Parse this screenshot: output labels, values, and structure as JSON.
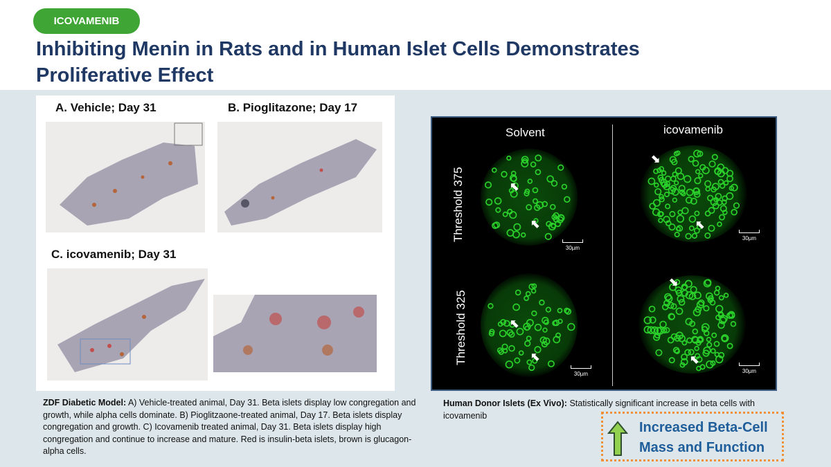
{
  "header": {
    "tag": "ICOVAMENIB",
    "title": "Inhibiting Menin in Rats and in Human Islet Cells Demonstrates Proliferative Effect"
  },
  "left": {
    "panels": [
      {
        "label": "A. Vehicle; Day 31"
      },
      {
        "label": "B. Pioglitazone; Day 17"
      },
      {
        "label": "C. icovamenib; Day 31"
      }
    ],
    "caption_bold": "ZDF Diabetic Model:",
    "caption": " A) Vehicle-treated animal, Day 31. Beta islets display low congregation and growth, while alpha cells dominate. B) Pioglitzaone-treated animal, Day 17. Beta islets display congregation and growth. C) Icovamenib treated animal, Day 31. Beta islets display high congregation and continue to increase and mature. Red is insulin-beta islets, brown is glucagon-alpha cells."
  },
  "right": {
    "columns": [
      "Solvent",
      "icovamenib"
    ],
    "rows": [
      "Threshold 375",
      "Threshold 325"
    ],
    "scale": "30µm",
    "caption_bold": "Human Donor Islets (Ex Vivo):",
    "caption": "  Statistically significant increase in beta cells with icovamenib"
  },
  "callout": {
    "line1": "Increased Beta-Cell",
    "line2": "Mass and Function",
    "arrow_color": "#92d050",
    "border_color": "#f0913a"
  },
  "colors": {
    "tag": "#3fa535",
    "title": "#1f3864",
    "band": "#dde6ea",
    "fluorescence": "#2bd12b"
  }
}
